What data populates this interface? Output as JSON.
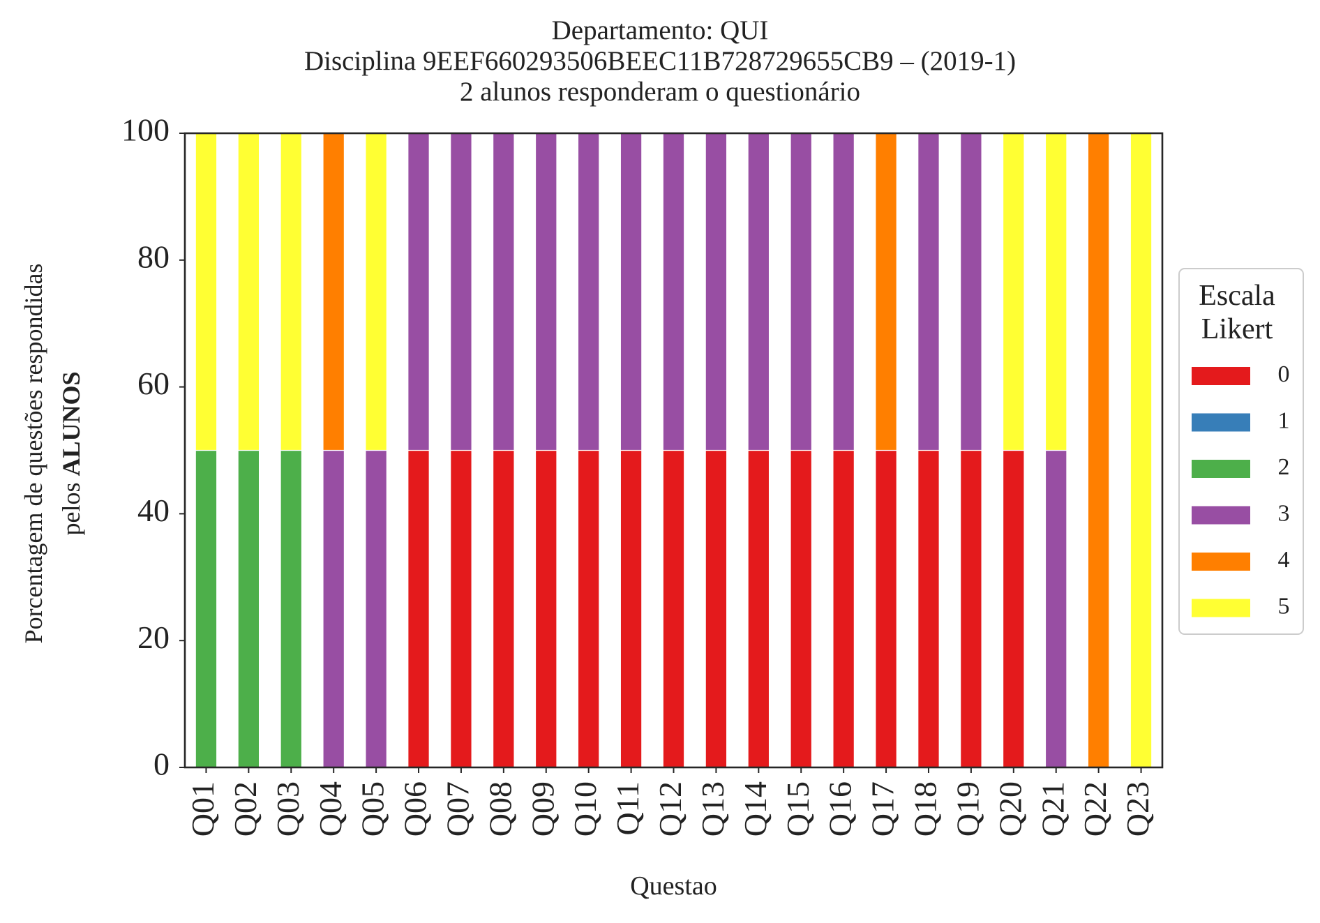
{
  "chart_data": {
    "type": "bar",
    "stacked": true,
    "title": [
      "Departamento: QUI",
      "Disciplina 9EEF660293506BEEC11B728729655CB9 – (2019-1)",
      "2 alunos responderam o questionário"
    ],
    "xlabel": "Questao",
    "ylabel_line1": "Porcentagem de questões respondidas",
    "ylabel_line2_prefix": "pelos ",
    "ylabel_line2_bold": "ALUNOS",
    "ylim": [
      0,
      100
    ],
    "yticks": [
      "0",
      "20",
      "40",
      "60",
      "80",
      "100"
    ],
    "categories": [
      "Q01",
      "Q02",
      "Q03",
      "Q04",
      "Q05",
      "Q06",
      "Q07",
      "Q08",
      "Q09",
      "Q10",
      "Q11",
      "Q12",
      "Q13",
      "Q14",
      "Q15",
      "Q16",
      "Q17",
      "Q18",
      "Q19",
      "Q20",
      "Q21",
      "Q22",
      "Q23"
    ],
    "legend_title": [
      "Escala",
      "Likert"
    ],
    "legend_position": "right",
    "grid": false,
    "series": [
      {
        "name": "0",
        "color": "#e41a1c",
        "values": [
          0,
          0,
          0,
          0,
          0,
          50,
          50,
          50,
          50,
          50,
          50,
          50,
          50,
          50,
          50,
          50,
          50,
          50,
          50,
          50,
          0,
          0,
          0
        ]
      },
      {
        "name": "1",
        "color": "#377eb8",
        "values": [
          0,
          0,
          0,
          0,
          0,
          0,
          0,
          0,
          0,
          0,
          0,
          0,
          0,
          0,
          0,
          0,
          0,
          0,
          0,
          0,
          0,
          0,
          0
        ]
      },
      {
        "name": "2",
        "color": "#4daf4a",
        "values": [
          50,
          50,
          50,
          0,
          0,
          0,
          0,
          0,
          0,
          0,
          0,
          0,
          0,
          0,
          0,
          0,
          0,
          0,
          0,
          0,
          0,
          0,
          0
        ]
      },
      {
        "name": "3",
        "color": "#984ea3",
        "values": [
          0,
          0,
          0,
          50,
          50,
          50,
          50,
          50,
          50,
          50,
          50,
          50,
          50,
          50,
          50,
          50,
          0,
          50,
          50,
          0,
          50,
          0,
          0
        ]
      },
      {
        "name": "4",
        "color": "#ff7f00",
        "values": [
          0,
          0,
          0,
          50,
          0,
          0,
          0,
          0,
          0,
          0,
          0,
          0,
          0,
          0,
          0,
          0,
          50,
          0,
          0,
          0,
          0,
          100,
          0
        ]
      },
      {
        "name": "5",
        "color": "#ffff33",
        "values": [
          50,
          50,
          50,
          0,
          50,
          0,
          0,
          0,
          0,
          0,
          0,
          0,
          0,
          0,
          0,
          0,
          0,
          0,
          0,
          50,
          50,
          0,
          100
        ]
      }
    ]
  }
}
